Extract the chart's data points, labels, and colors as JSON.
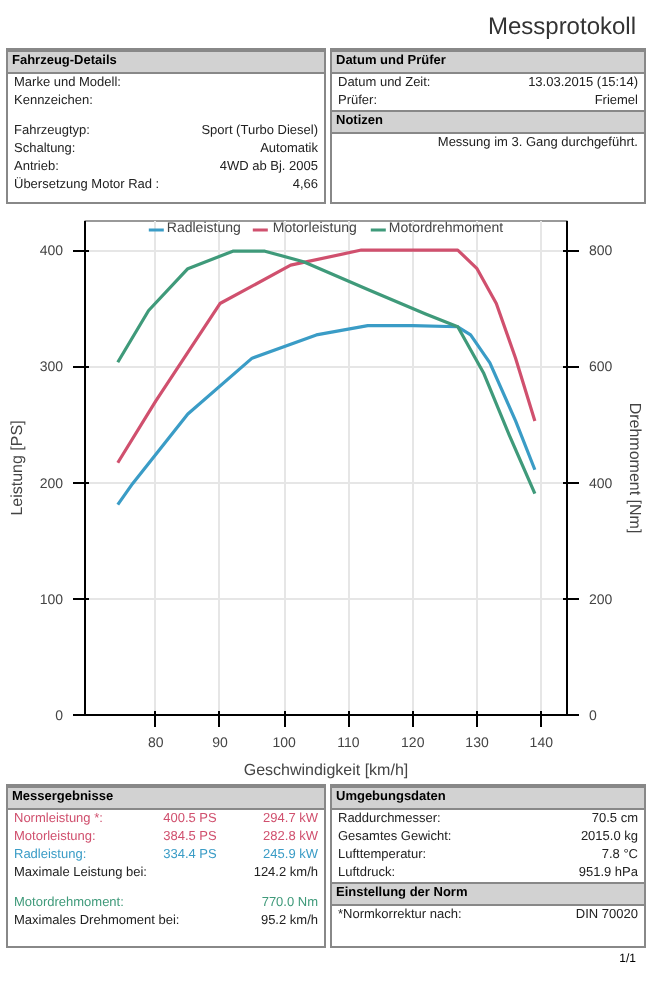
{
  "chart_data": {
    "type": "line",
    "title": "Messprotokoll",
    "xlabel": "Geschwindigkeit [km/h]",
    "ylabel": "Leistung [PS]",
    "y2label": "Drehmoment [Nm]",
    "xlim": [
      69,
      144
    ],
    "xticks": [
      80,
      90,
      100,
      110,
      120,
      130,
      140
    ],
    "ylim": [
      0,
      425
    ],
    "yticks": [
      0,
      100,
      200,
      300,
      400
    ],
    "y2lim": [
      0,
      850
    ],
    "y2ticks": [
      0,
      200,
      400,
      600,
      800
    ],
    "grid": true,
    "legend": "top",
    "line_style": "solid",
    "marker": "none",
    "series": [
      {
        "name": "Radleistung",
        "color": "#3a9cc6",
        "x": [
          74.1,
          76.4,
          85,
          95,
          105,
          113,
          120,
          127,
          129,
          132,
          136,
          139
        ],
        "values": [
          181,
          199,
          259,
          307,
          327,
          335,
          335,
          334,
          327,
          303,
          253,
          211
        ]
      },
      {
        "name": "Motorleistung",
        "color": "#d0506e",
        "x": [
          74.1,
          80,
          90,
          101,
          112,
          121,
          127,
          130,
          133,
          136,
          139
        ],
        "values": [
          217,
          270,
          354,
          387,
          400,
          400,
          400,
          384,
          354,
          307,
          253
        ]
      },
      {
        "name": "Motordrehmoment",
        "color": "#3f9a7a",
        "axis": "y2",
        "x": [
          74.1,
          78.9,
          85,
          92,
          97,
          103,
          113,
          122,
          127,
          131,
          135,
          139
        ],
        "values": [
          607,
          696,
          768,
          798,
          798,
          780,
          732,
          690,
          668,
          589,
          482,
          381
        ]
      }
    ],
    "annotations": [
      "Fahrzeug-Details",
      "Marke und Modell:",
      "Kennzeichen:",
      "Fahrzeugtyp:",
      "Sport (Turbo Diesel)",
      "Schaltung:",
      "Automatik",
      "Antrieb:",
      "4WD ab Bj. 2005",
      "Übersetzung Motor Rad :",
      "4,66",
      "Datum und Prüfer",
      "Datum und Zeit:",
      "13.03.2015 (15:14)",
      "Prüfer:",
      "Friemel",
      "Notizen",
      "Messung im 3. Gang durchgeführt.",
      "Messergebnisse",
      "Normleistung *:",
      "400.5 PS",
      "294.7 kW",
      "Motorleistung:",
      "384.5 PS",
      "282.8 kW",
      "Radleistung:",
      "334.4 PS",
      "245.9 kW",
      "Maximale Leistung bei:",
      "124.2 km/h",
      "Motordrehmoment:",
      "770.0 Nm",
      "Maximales Drehmoment bei:",
      "95.2 km/h",
      "Umgebungsdaten",
      "Raddurchmesser:",
      "70.5 cm",
      "Gesamtes Gewicht:",
      "2015.0 kg",
      "Lufttemperatur:",
      "7.8 °C",
      "Luftdruck:",
      "951.9 hPa",
      "Einstellung der Norm",
      "*Normkorrektur nach:",
      "DIN 70020",
      "1/1"
    ]
  }
}
